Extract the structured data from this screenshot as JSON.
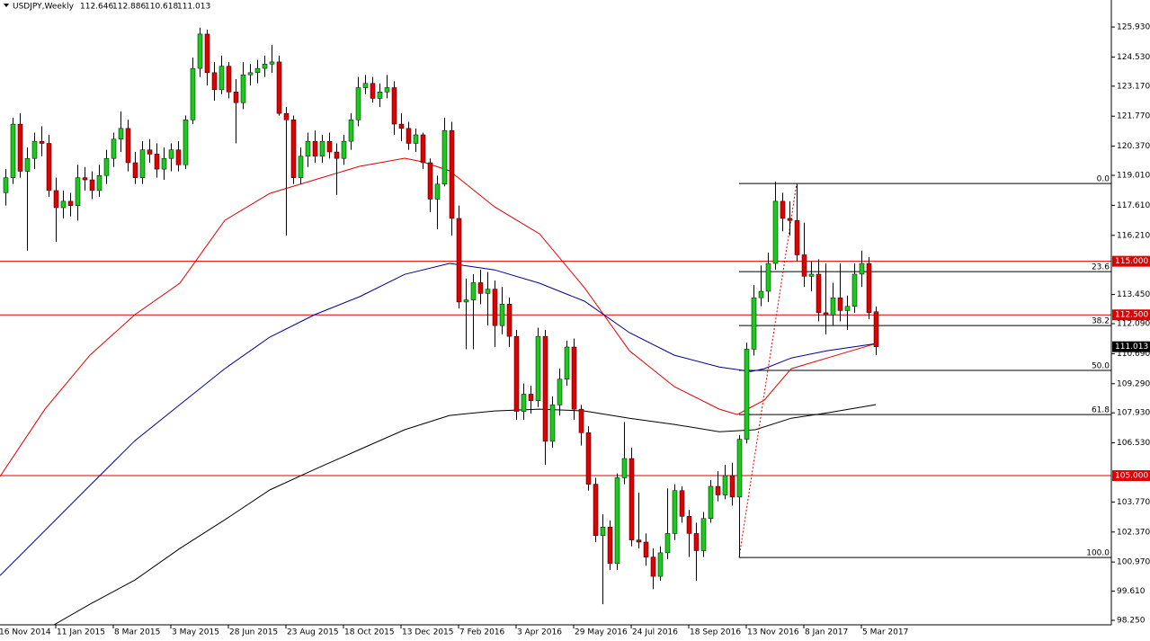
{
  "header": {
    "title": "USDJPY,Weekly"
  },
  "chart_data": {
    "type": "candlestick",
    "up_color": "#1ec81e",
    "down_color": "#e00000",
    "wick_color": "#000000",
    "ylim": [
      98.04,
      127.19
    ],
    "yticks": [
      {
        "value": 125.93,
        "label": "125.930"
      },
      {
        "value": 124.53,
        "label": "124.530"
      },
      {
        "value": 123.17,
        "label": "123.170"
      },
      {
        "value": 121.77,
        "label": "121.770"
      },
      {
        "value": 120.37,
        "label": "120.370"
      },
      {
        "value": 119.01,
        "label": "119.010"
      },
      {
        "value": 117.61,
        "label": "117.610"
      },
      {
        "value": 116.21,
        "label": "116.210"
      },
      {
        "value": 113.45,
        "label": "113.450"
      },
      {
        "value": 112.09,
        "label": "112.090"
      },
      {
        "value": 110.69,
        "label": "110.690"
      },
      {
        "value": 109.29,
        "label": "109.290"
      },
      {
        "value": 107.93,
        "label": "107.930"
      },
      {
        "value": 106.53,
        "label": "106.530"
      },
      {
        "value": 103.77,
        "label": "103.770"
      },
      {
        "value": 102.37,
        "label": "102.370"
      },
      {
        "value": 100.97,
        "label": "100.970"
      },
      {
        "value": 99.61,
        "label": "99.610"
      },
      {
        "value": 98.25,
        "label": "98.250"
      }
    ],
    "xlim": [
      -0.75,
      153.75
    ],
    "xticks": [
      {
        "value": -1,
        "label": "16 Nov 2014"
      },
      {
        "value": 7,
        "label": "11 Jan 2015"
      },
      {
        "value": 15,
        "label": "8 Mar 2015"
      },
      {
        "value": 23,
        "label": "3 May 2015"
      },
      {
        "value": 31,
        "label": "28 Jun 2015"
      },
      {
        "value": 39,
        "label": "23 Aug 2015"
      },
      {
        "value": 47,
        "label": "18 Oct 2015"
      },
      {
        "value": 55,
        "label": "13 Dec 2015"
      },
      {
        "value": 63,
        "label": "7 Feb 2016"
      },
      {
        "value": 71,
        "label": "3 Apr 2016"
      },
      {
        "value": 79,
        "label": "29 May 2016"
      },
      {
        "value": 87,
        "label": "24 Jul 2016"
      },
      {
        "value": 95,
        "label": "18 Sep 2016"
      },
      {
        "value": 103,
        "label": "13 Nov 2016"
      },
      {
        "value": 111,
        "label": "8 Jan 2017"
      },
      {
        "value": 119,
        "label": "5 Mar 2017"
      }
    ],
    "candles": [
      [
        118.2,
        119.3,
        117.6,
        118.9
      ],
      [
        118.9,
        121.7,
        118.6,
        121.4
      ],
      [
        121.4,
        121.9,
        118.9,
        119.2
      ],
      [
        119.2,
        120.3,
        115.5,
        119.8
      ],
      [
        119.8,
        121.0,
        119.3,
        120.6
      ],
      [
        120.6,
        121.3,
        119.9,
        120.5
      ],
      [
        120.5,
        120.9,
        118.0,
        118.3
      ],
      [
        118.3,
        118.9,
        115.9,
        117.5
      ],
      [
        117.5,
        118.3,
        117.0,
        117.8
      ],
      [
        117.8,
        118.2,
        117.1,
        117.6
      ],
      [
        117.6,
        119.5,
        116.9,
        118.9
      ],
      [
        118.9,
        119.4,
        118.3,
        118.8
      ],
      [
        118.8,
        119.2,
        117.9,
        118.3
      ],
      [
        118.3,
        119.5,
        118.0,
        119.0
      ],
      [
        119.0,
        120.2,
        118.6,
        119.8
      ],
      [
        119.8,
        121.0,
        119.4,
        120.7
      ],
      [
        120.7,
        122.0,
        120.1,
        121.2
      ],
      [
        121.2,
        121.6,
        119.2,
        119.6
      ],
      [
        119.6,
        120.1,
        118.6,
        118.9
      ],
      [
        118.9,
        120.6,
        118.6,
        120.2
      ],
      [
        120.2,
        120.7,
        119.6,
        120.0
      ],
      [
        120.0,
        120.5,
        118.9,
        119.3
      ],
      [
        119.3,
        120.3,
        118.8,
        119.8
      ],
      [
        119.8,
        120.5,
        119.2,
        120.2
      ],
      [
        120.2,
        120.6,
        119.2,
        119.5
      ],
      [
        119.5,
        121.8,
        119.3,
        121.6
      ],
      [
        121.6,
        124.5,
        121.4,
        124.0
      ],
      [
        124.0,
        125.9,
        123.6,
        125.6
      ],
      [
        125.6,
        125.8,
        123.2,
        123.8
      ],
      [
        123.8,
        124.3,
        122.5,
        123.0
      ],
      [
        123.0,
        124.6,
        122.8,
        124.1
      ],
      [
        124.1,
        124.3,
        122.6,
        122.9
      ],
      [
        122.9,
        123.5,
        120.5,
        122.4
      ],
      [
        122.4,
        124.3,
        122.1,
        123.7
      ],
      [
        123.7,
        124.2,
        123.2,
        123.8
      ],
      [
        123.8,
        124.4,
        123.3,
        124.0
      ],
      [
        124.0,
        124.6,
        123.6,
        124.2
      ],
      [
        124.2,
        125.1,
        123.8,
        124.3
      ],
      [
        124.3,
        124.6,
        121.8,
        121.9
      ],
      [
        121.9,
        122.2,
        116.2,
        121.6
      ],
      [
        121.6,
        121.8,
        118.6,
        118.9
      ],
      [
        118.9,
        120.3,
        118.6,
        119.9
      ],
      [
        119.9,
        121.0,
        119.4,
        120.6
      ],
      [
        120.6,
        121.1,
        119.6,
        119.9
      ],
      [
        119.9,
        120.9,
        119.6,
        120.6
      ],
      [
        120.6,
        121.0,
        119.8,
        120.1
      ],
      [
        120.1,
        120.5,
        118.1,
        119.8
      ],
      [
        119.8,
        120.9,
        119.5,
        120.6
      ],
      [
        120.6,
        121.9,
        120.2,
        121.6
      ],
      [
        121.6,
        123.6,
        121.3,
        123.1
      ],
      [
        123.1,
        123.7,
        122.8,
        123.3
      ],
      [
        123.3,
        123.6,
        122.4,
        122.6
      ],
      [
        122.6,
        123.3,
        122.2,
        122.9
      ],
      [
        122.9,
        123.7,
        122.6,
        123.1
      ],
      [
        123.1,
        123.4,
        120.9,
        121.4
      ],
      [
        121.4,
        121.9,
        120.6,
        121.2
      ],
      [
        121.2,
        121.5,
        120.2,
        120.5
      ],
      [
        120.5,
        121.2,
        120.1,
        120.9
      ],
      [
        120.9,
        121.0,
        119.3,
        119.6
      ],
      [
        119.6,
        119.8,
        117.3,
        117.9
      ],
      [
        117.9,
        119.0,
        116.5,
        118.6
      ],
      [
        118.6,
        121.7,
        118.5,
        121.1
      ],
      [
        121.1,
        121.5,
        116.2,
        117.0
      ],
      [
        117.0,
        117.6,
        112.8,
        113.1
      ],
      [
        113.1,
        114.2,
        110.9,
        113.2
      ],
      [
        113.2,
        114.4,
        110.9,
        114.0
      ],
      [
        114.0,
        114.6,
        113.0,
        113.5
      ],
      [
        113.5,
        114.5,
        112.0,
        113.7
      ],
      [
        113.7,
        114.1,
        111.0,
        112.0
      ],
      [
        112.0,
        113.8,
        111.6,
        113.0
      ],
      [
        113.0,
        113.3,
        111.0,
        111.5
      ],
      [
        111.5,
        111.8,
        107.6,
        108.0
      ],
      [
        108.0,
        109.3,
        107.6,
        108.8
      ],
      [
        108.8,
        109.2,
        107.9,
        108.5
      ],
      [
        108.5,
        111.9,
        108.2,
        111.5
      ],
      [
        111.5,
        111.8,
        105.5,
        106.6
      ],
      [
        106.6,
        108.7,
        106.3,
        108.3
      ],
      [
        108.3,
        110.0,
        107.8,
        109.5
      ],
      [
        109.5,
        111.3,
        109.2,
        111.0
      ],
      [
        111.0,
        111.4,
        107.6,
        108.1
      ],
      [
        108.1,
        108.3,
        106.4,
        107.0
      ],
      [
        107.0,
        107.3,
        104.3,
        104.6
      ],
      [
        104.6,
        104.9,
        101.9,
        102.2
      ],
      [
        102.2,
        103.2,
        99.0,
        102.6
      ],
      [
        102.6,
        102.9,
        100.6,
        100.9
      ],
      [
        100.9,
        105.1,
        100.6,
        104.9
      ],
      [
        104.9,
        107.5,
        104.6,
        105.8
      ],
      [
        105.8,
        106.3,
        101.7,
        102.0
      ],
      [
        102.0,
        104.2,
        101.6,
        101.9
      ],
      [
        101.9,
        102.3,
        100.8,
        101.2
      ],
      [
        101.2,
        101.6,
        99.7,
        100.3
      ],
      [
        100.3,
        101.7,
        100.1,
        101.4
      ],
      [
        101.4,
        104.4,
        101.1,
        102.3
      ],
      [
        102.3,
        104.6,
        102.0,
        104.3
      ],
      [
        104.3,
        104.5,
        102.8,
        103.1
      ],
      [
        103.1,
        103.4,
        101.2,
        102.3
      ],
      [
        102.3,
        102.8,
        100.1,
        101.5
      ],
      [
        101.5,
        103.3,
        101.2,
        103.0
      ],
      [
        103.0,
        104.8,
        102.8,
        104.5
      ],
      [
        104.5,
        105.2,
        103.8,
        104.1
      ],
      [
        104.1,
        105.5,
        103.9,
        105.0
      ],
      [
        105.0,
        105.6,
        103.6,
        104.0
      ],
      [
        104.0,
        106.9,
        101.2,
        106.7
      ],
      [
        106.7,
        111.2,
        106.5,
        110.9
      ],
      [
        110.9,
        113.9,
        110.6,
        113.3
      ],
      [
        113.3,
        114.8,
        112.9,
        113.6
      ],
      [
        113.6,
        115.4,
        113.1,
        114.9
      ],
      [
        114.9,
        118.7,
        114.6,
        117.8
      ],
      [
        117.8,
        118.2,
        116.4,
        117.0
      ],
      [
        117.0,
        117.8,
        116.2,
        116.9
      ],
      [
        116.9,
        118.6,
        115.0,
        115.3
      ],
      [
        115.3,
        116.8,
        113.8,
        114.3
      ],
      [
        114.3,
        115.0,
        113.6,
        114.4
      ],
      [
        114.4,
        115.1,
        112.2,
        112.6
      ],
      [
        112.6,
        114.9,
        111.6,
        112.5
      ],
      [
        112.5,
        114.0,
        112.0,
        113.3
      ],
      [
        113.3,
        114.9,
        112.2,
        112.7
      ],
      [
        112.7,
        113.4,
        111.8,
        112.9
      ],
      [
        112.9,
        114.9,
        112.6,
        114.4
      ],
      [
        114.4,
        115.5,
        113.8,
        114.9
      ],
      [
        114.9,
        115.2,
        112.3,
        112.6
      ],
      [
        112.646,
        112.886,
        110.618,
        111.013
      ]
    ],
    "ma": [
      {
        "color": "#e00000",
        "x": [
          -0.75,
          5.5,
          11.75,
          18,
          24.25,
          30.5,
          36.75,
          43,
          49.25,
          55.5,
          58,
          61.75,
          68,
          74.25,
          80.5,
          86.75,
          93,
          99.25,
          101.75,
          105.5,
          109.25,
          114.25,
          121
        ],
        "values": [
          104.96,
          108.1,
          110.62,
          112.51,
          113.98,
          116.91,
          118.17,
          118.8,
          119.43,
          119.81,
          119.64,
          119.22,
          117.54,
          116.28,
          113.77,
          110.83,
          109.15,
          108.1,
          107.85,
          108.52,
          109.99,
          110.49,
          111.16
        ]
      },
      {
        "color": "#00008b",
        "x": [
          -0.75,
          5.5,
          11.75,
          18,
          24.25,
          30.5,
          36.75,
          43,
          49.25,
          55.5,
          61.75,
          68,
          74.25,
          80.5,
          86.75,
          93,
          99.25,
          103.625,
          105.5,
          109.25,
          114.25,
          121
        ],
        "values": [
          100.34,
          102.44,
          104.54,
          106.63,
          108.31,
          109.99,
          111.46,
          112.51,
          113.35,
          114.39,
          114.9,
          114.6,
          113.98,
          113.14,
          111.67,
          110.62,
          110.07,
          109.86,
          109.99,
          110.49,
          110.83,
          111.16
        ]
      },
      {
        "color": "#000000",
        "x": [
          6.75,
          11.75,
          18,
          24.25,
          30.5,
          36.75,
          43,
          49.25,
          55.5,
          61.75,
          68,
          74.25,
          80.5,
          86.75,
          93,
          99.25,
          104.25,
          109.25,
          114.25,
          121
        ],
        "values": [
          98.04,
          99.0,
          100.13,
          101.6,
          102.94,
          104.33,
          105.29,
          106.22,
          107.14,
          107.81,
          108.02,
          108.1,
          108.02,
          107.68,
          107.39,
          107.05,
          107.14,
          107.68,
          107.93,
          108.31
        ]
      }
    ],
    "hlines": {
      "color": "#e00000",
      "values": [
        115,
        112.5,
        105
      ],
      "value_labels": [
        "115.000",
        "112.500",
        "105.000"
      ]
    },
    "fibonacci": {
      "color": "#000000",
      "x": [
        102,
        153.75
      ],
      "levels": [
        {
          "value": 0,
          "label": "0.0"
        },
        23.6,
        38.2,
        {
          "value": 50,
          "label": "50.0"
        },
        61.8,
        {
          "value": 100,
          "label": "100.0"
        }
      ],
      "prices": [
        118.63,
        114.52,
        112.0,
        109.91,
        107.85,
        101.18
      ]
    },
    "trendline": {
      "color": "#e00000",
      "x": [
        102,
        110
      ],
      "values": [
        101.18,
        118.63
      ]
    }
  }
}
